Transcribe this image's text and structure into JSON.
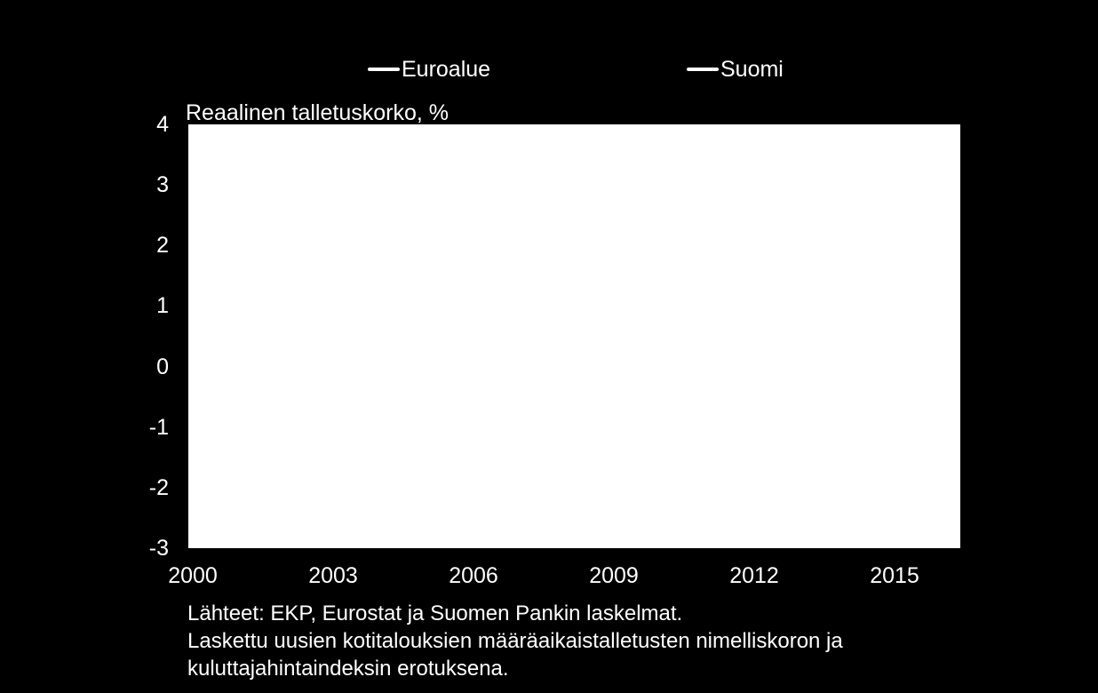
{
  "chart_data": {
    "type": "line",
    "title": "",
    "ylabel": "Reaalinen talletuskorko, %",
    "xlabel": "",
    "ylim": [
      -3,
      4
    ],
    "yticks": [
      "4",
      "3",
      "2",
      "1",
      "0",
      "-1",
      "-2",
      "-3"
    ],
    "xlim": [
      2000,
      2016.5
    ],
    "xticks": [
      "2000",
      "2003",
      "2006",
      "2009",
      "2012",
      "2015"
    ],
    "legend_position": "top",
    "series": [
      {
        "name": "Euroalue",
        "color": "#ffffff",
        "x": [],
        "y": []
      },
      {
        "name": "Suomi",
        "color": "#ffffff",
        "x": [],
        "y": []
      }
    ],
    "grid": false
  },
  "notes": {
    "source": "Lähteet: EKP, Eurostat ja Suomen Pankin laskelmat.",
    "method_line1": "Laskettu uusien kotitalouksien määräaikaistalletusten nimelliskoron ja",
    "method_line2": "kuluttajahintaindeksin erotuksena."
  },
  "colors": {
    "background": "#000000",
    "plot_background": "#ffffff",
    "text": "#ffffff"
  }
}
